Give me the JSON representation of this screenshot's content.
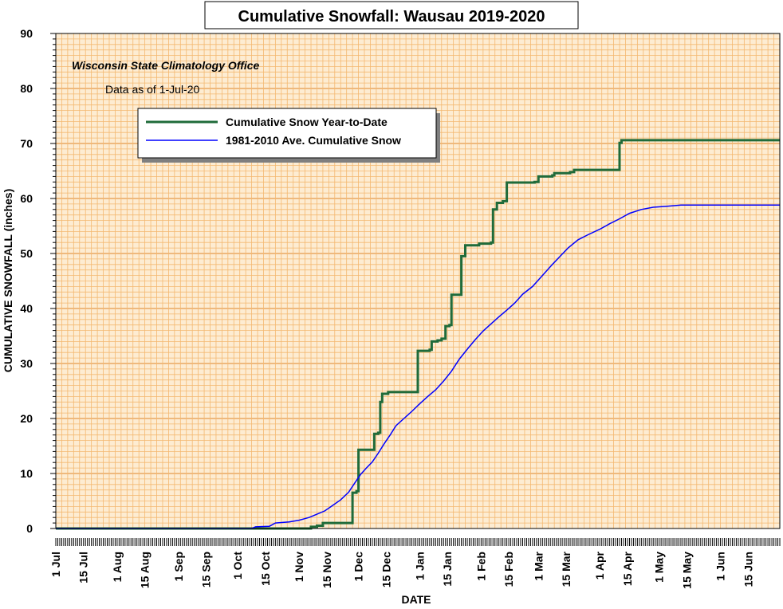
{
  "chart_data": {
    "type": "line",
    "title": "Cumulative Snowfall: Wausau 2019-2020",
    "xlabel": "DATE",
    "ylabel": "CUMULATIVE SNOWFALL (inches)",
    "ylim": [
      0,
      90
    ],
    "yticks": [
      "0",
      "10",
      "20",
      "30",
      "40",
      "50",
      "60",
      "70",
      "80",
      "90"
    ],
    "xlim": [
      "2019-07-01",
      "2020-07-01"
    ],
    "xtick_labels": [
      "1 Jul",
      "15 Jul",
      "1 Aug",
      "15 Aug",
      "1 Sep",
      "15 Sep",
      "1 Oct",
      "15 Oct",
      "1 Nov",
      "15 Nov",
      "1 Dec",
      "15 Dec",
      "1 Jan",
      "15 Jan",
      "1 Feb",
      "15 Feb",
      "1 Mar",
      "15 Mar",
      "1 Apr",
      "15 Apr",
      "1 May",
      "15 May",
      "1 Jun",
      "15 Jun"
    ],
    "xtick_dates": [
      "2019-07-01",
      "2019-07-15",
      "2019-08-01",
      "2019-08-15",
      "2019-09-01",
      "2019-09-15",
      "2019-10-01",
      "2019-10-15",
      "2019-11-01",
      "2019-11-15",
      "2019-12-01",
      "2019-12-15",
      "2020-01-01",
      "2020-01-15",
      "2020-02-01",
      "2020-02-15",
      "2020-03-01",
      "2020-03-15",
      "2020-04-01",
      "2020-04-15",
      "2020-05-01",
      "2020-05-15",
      "2020-06-01",
      "2020-06-15"
    ],
    "grid": true,
    "legend_position": "top-left",
    "annotations": [
      "Wisconsin State Climatology Office",
      "Data as of 1-Jul-20"
    ],
    "series": [
      {
        "name": "Cumulative Snow Year-to-Date",
        "color": "#1f6b3a",
        "step": true,
        "points": [
          [
            "2019-07-01",
            0
          ],
          [
            "2019-11-05",
            0
          ],
          [
            "2019-11-07",
            0.3
          ],
          [
            "2019-11-10",
            0.5
          ],
          [
            "2019-11-13",
            1.0
          ],
          [
            "2019-11-27",
            1.0
          ],
          [
            "2019-11-28",
            6.5
          ],
          [
            "2019-11-30",
            6.8
          ],
          [
            "2019-12-01",
            14.3
          ],
          [
            "2019-12-08",
            14.3
          ],
          [
            "2019-12-09",
            17.2
          ],
          [
            "2019-12-11",
            17.4
          ],
          [
            "2019-12-12",
            23.0
          ],
          [
            "2019-12-13",
            24.5
          ],
          [
            "2019-12-16",
            24.8
          ],
          [
            "2019-12-30",
            24.8
          ],
          [
            "2019-12-31",
            32.3
          ],
          [
            "2020-01-06",
            32.5
          ],
          [
            "2020-01-07",
            34.0
          ],
          [
            "2020-01-10",
            34.2
          ],
          [
            "2020-01-12",
            34.5
          ],
          [
            "2020-01-14",
            36.8
          ],
          [
            "2020-01-16",
            37.0
          ],
          [
            "2020-01-17",
            42.5
          ],
          [
            "2020-01-20",
            42.5
          ],
          [
            "2020-01-22",
            49.5
          ],
          [
            "2020-01-24",
            51.5
          ],
          [
            "2020-01-31",
            51.8
          ],
          [
            "2020-02-06",
            52.0
          ],
          [
            "2020-02-07",
            58.0
          ],
          [
            "2020-02-09",
            59.2
          ],
          [
            "2020-02-12",
            59.5
          ],
          [
            "2020-02-14",
            62.9
          ],
          [
            "2020-02-28",
            63.0
          ],
          [
            "2020-03-01",
            64.0
          ],
          [
            "2020-03-08",
            64.2
          ],
          [
            "2020-03-09",
            64.6
          ],
          [
            "2020-03-17",
            64.8
          ],
          [
            "2020-03-19",
            65.2
          ],
          [
            "2020-04-10",
            65.2
          ],
          [
            "2020-04-11",
            70.1
          ],
          [
            "2020-04-12",
            70.6
          ],
          [
            "2020-07-01",
            70.6
          ]
        ]
      },
      {
        "name": "1981-2010 Ave. Cumulative Snow",
        "color": "#0000ff",
        "step": false,
        "points": [
          [
            "2019-07-01",
            0
          ],
          [
            "2019-10-08",
            0
          ],
          [
            "2019-10-10",
            0.3
          ],
          [
            "2019-10-17",
            0.4
          ],
          [
            "2019-10-20",
            1.0
          ],
          [
            "2019-10-27",
            1.2
          ],
          [
            "2019-11-01",
            1.5
          ],
          [
            "2019-11-06",
            2.0
          ],
          [
            "2019-11-10",
            2.6
          ],
          [
            "2019-11-14",
            3.2
          ],
          [
            "2019-11-18",
            4.2
          ],
          [
            "2019-11-22",
            5.2
          ],
          [
            "2019-11-26",
            6.6
          ],
          [
            "2019-11-29",
            8.2
          ],
          [
            "2019-12-02",
            9.8
          ],
          [
            "2019-12-05",
            11.0
          ],
          [
            "2019-12-08",
            12.1
          ],
          [
            "2019-12-11",
            13.7
          ],
          [
            "2019-12-14",
            15.4
          ],
          [
            "2019-12-17",
            17.0
          ],
          [
            "2019-12-20",
            18.7
          ],
          [
            "2019-12-24",
            20.0
          ],
          [
            "2019-12-28",
            21.3
          ],
          [
            "2020-01-01",
            22.7
          ],
          [
            "2020-01-05",
            24.0
          ],
          [
            "2020-01-09",
            25.2
          ],
          [
            "2020-01-13",
            26.8
          ],
          [
            "2020-01-17",
            28.6
          ],
          [
            "2020-01-21",
            30.8
          ],
          [
            "2020-01-25",
            32.6
          ],
          [
            "2020-01-29",
            34.3
          ],
          [
            "2020-02-02",
            35.9
          ],
          [
            "2020-02-06",
            37.2
          ],
          [
            "2020-02-10",
            38.5
          ],
          [
            "2020-02-14",
            39.7
          ],
          [
            "2020-02-18",
            41.0
          ],
          [
            "2020-02-22",
            42.6
          ],
          [
            "2020-02-27",
            44.0
          ],
          [
            "2020-03-03",
            46.0
          ],
          [
            "2020-03-08",
            48.0
          ],
          [
            "2020-03-12",
            49.5
          ],
          [
            "2020-03-16",
            51.0
          ],
          [
            "2020-03-21",
            52.5
          ],
          [
            "2020-03-26",
            53.4
          ],
          [
            "2020-04-01",
            54.4
          ],
          [
            "2020-04-06",
            55.4
          ],
          [
            "2020-04-11",
            56.3
          ],
          [
            "2020-04-16",
            57.3
          ],
          [
            "2020-04-22",
            58.0
          ],
          [
            "2020-04-28",
            58.4
          ],
          [
            "2020-05-05",
            58.6
          ],
          [
            "2020-05-12",
            58.8
          ],
          [
            "2020-07-01",
            58.8
          ]
        ]
      }
    ]
  }
}
